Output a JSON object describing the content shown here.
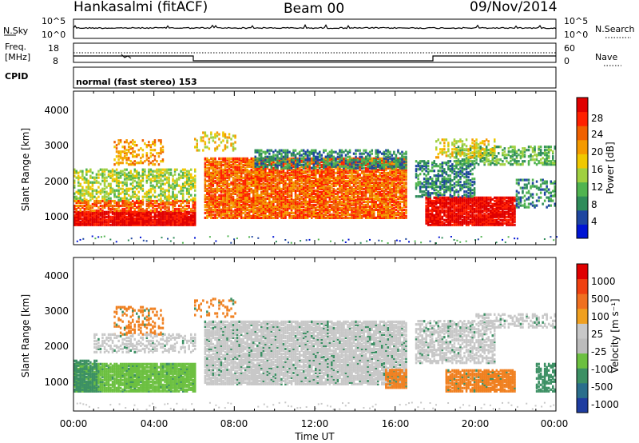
{
  "header": {
    "station": "Hankasalmi (fitACF)",
    "beam": "Beam 00",
    "date": "09/Nov/2014"
  },
  "strips": {
    "nsky_label": "N.Sky",
    "nsky_ticks": [
      "10^5",
      "10^0"
    ],
    "nsearch_label": "N.Search",
    "nsearch_ticks": [
      "10^5",
      "10^0"
    ],
    "freq_label": [
      "Freq.",
      "[MHz]"
    ],
    "freq_ticks": [
      "18",
      "8"
    ],
    "nave_label": "Nave",
    "nave_ticks": [
      "60",
      "0"
    ],
    "cpid_label": "CPID",
    "cpid_text": "normal (fast stereo) 153"
  },
  "chart_data": [
    {
      "type": "heatmap",
      "name_hint": "power-panel",
      "xlabel": "",
      "ylabel": "Slant Range [km]",
      "x_range_hours": [
        0,
        24
      ],
      "y_range_km": [
        180,
        4500
      ],
      "y_ticks": [
        "1000",
        "2000",
        "3000",
        "4000"
      ],
      "colorbar": {
        "label": "Power [dB]",
        "ticks": [
          "28",
          "24",
          "20",
          "16",
          "12",
          "8",
          "4"
        ],
        "colors": [
          "#0014d4",
          "#1e46a0",
          "#2e8c5a",
          "#50b450",
          "#a0d040",
          "#f0c800",
          "#f59a00",
          "#f06000",
          "#ff2000",
          "#e00000"
        ]
      }
    },
    {
      "type": "heatmap",
      "name_hint": "velocity-panel",
      "xlabel": "Time UT",
      "ylabel": "Slant Range [km]",
      "x_range_hours": [
        0,
        24
      ],
      "y_range_km": [
        180,
        4500
      ],
      "y_ticks": [
        "1000",
        "2000",
        "3000",
        "4000"
      ],
      "x_ticks": [
        "00:00",
        "04:00",
        "08:00",
        "12:00",
        "16:00",
        "20:00",
        "00:00"
      ],
      "colorbar": {
        "label": "Velocity [m s⁻¹]",
        "ticks": [
          "1000",
          "500",
          "100",
          "25",
          "-25",
          "-100",
          "-500",
          "-1000"
        ],
        "colors": [
          "#1e3ca0",
          "#2a6e8c",
          "#3c9064",
          "#6cc040",
          "#bcbcbc",
          "#c8c8c8",
          "#f0a020",
          "#f07020",
          "#f04010",
          "#e00000"
        ]
      }
    }
  ]
}
